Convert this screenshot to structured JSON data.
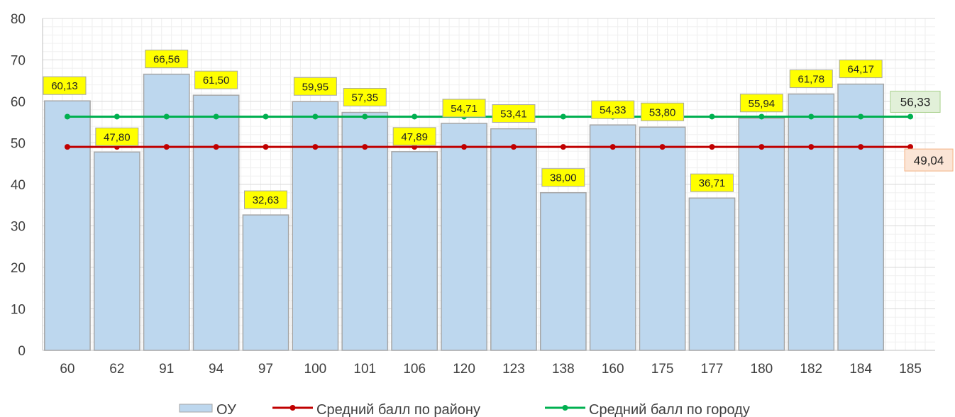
{
  "colors": {
    "bar_fill": "#BDD7EE",
    "bar_stroke": "#A6A6A6",
    "district_line": "#C00000",
    "city_line": "#00B050",
    "label_bg": "#FFFF00",
    "label_border": "#A6A6A6",
    "city_label_bg": "#E2F0D9",
    "city_label_border": "#A9D18E",
    "district_label_bg": "#FBE5D6",
    "district_label_border": "#F4B183",
    "grid": "#D9D9D9"
  },
  "chart_data": {
    "type": "bar",
    "categories": [
      "60",
      "62",
      "91",
      "94",
      "97",
      "100",
      "101",
      "106",
      "120",
      "123",
      "138",
      "160",
      "175",
      "177",
      "180",
      "182",
      "184",
      "185"
    ],
    "series": [
      {
        "name": "ОУ",
        "type": "bar",
        "values": [
          60.13,
          47.8,
          66.56,
          61.5,
          32.63,
          59.95,
          57.35,
          47.89,
          54.71,
          53.41,
          38.0,
          54.33,
          53.8,
          36.71,
          55.94,
          61.78,
          64.17,
          null
        ],
        "labels": [
          "60,13",
          "47,80",
          "66,56",
          "61,50",
          "32,63",
          "59,95",
          "57,35",
          "47,89",
          "54,71",
          "53,41",
          "38,00",
          "54,33",
          "53,80",
          "36,71",
          "55,94",
          "61,78",
          "64,17",
          ""
        ]
      },
      {
        "name": "Средний балл по району",
        "type": "line",
        "values": [
          49.04,
          49.04,
          49.04,
          49.04,
          49.04,
          49.04,
          49.04,
          49.04,
          49.04,
          49.04,
          49.04,
          49.04,
          49.04,
          49.04,
          49.04,
          49.04,
          49.04,
          49.04
        ],
        "end_label": "49,04"
      },
      {
        "name": "Средний балл по городу",
        "type": "line",
        "values": [
          56.33,
          56.33,
          56.33,
          56.33,
          56.33,
          56.33,
          56.33,
          56.33,
          56.33,
          56.33,
          56.33,
          56.33,
          56.33,
          56.33,
          56.33,
          56.33,
          56.33,
          56.33
        ],
        "end_label": "56,33"
      }
    ],
    "yticks": [
      "0",
      "10",
      "20",
      "30",
      "40",
      "50",
      "60",
      "70",
      "80"
    ],
    "ylim": [
      0,
      80
    ],
    "grid": true,
    "legend_position": "bottom",
    "title": "",
    "xlabel": "",
    "ylabel": ""
  }
}
